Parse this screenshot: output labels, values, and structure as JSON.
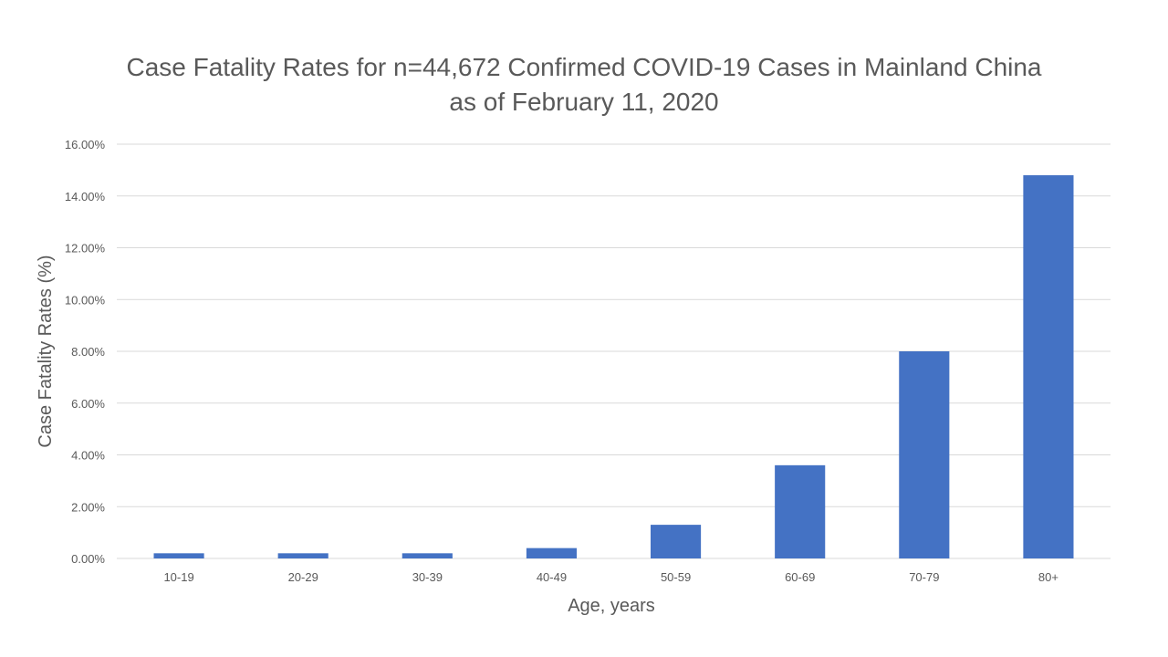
{
  "chart_data": {
    "type": "bar",
    "title": [
      "Case Fatality Rates for n=44,672 Confirmed COVID-19 Cases in Mainland China",
      "as of February 11, 2020"
    ],
    "xlabel": "Age, years",
    "ylabel": "Case Fatality Rates (%)",
    "categories": [
      "10-19",
      "20-29",
      "30-39",
      "40-49",
      "50-59",
      "60-69",
      "70-79",
      "80+"
    ],
    "values": [
      0.2,
      0.2,
      0.2,
      0.4,
      1.3,
      3.6,
      8.0,
      14.8
    ],
    "ylim": [
      0,
      16
    ],
    "yticks": [
      0,
      2,
      4,
      6,
      8,
      10,
      12,
      14,
      16
    ],
    "ytick_labels": [
      "0.00%",
      "2.00%",
      "4.00%",
      "6.00%",
      "8.00%",
      "10.00%",
      "12.00%",
      "14.00%",
      "16.00%"
    ],
    "grid": true,
    "legend": "none",
    "bar_color": "#4472c4"
  }
}
